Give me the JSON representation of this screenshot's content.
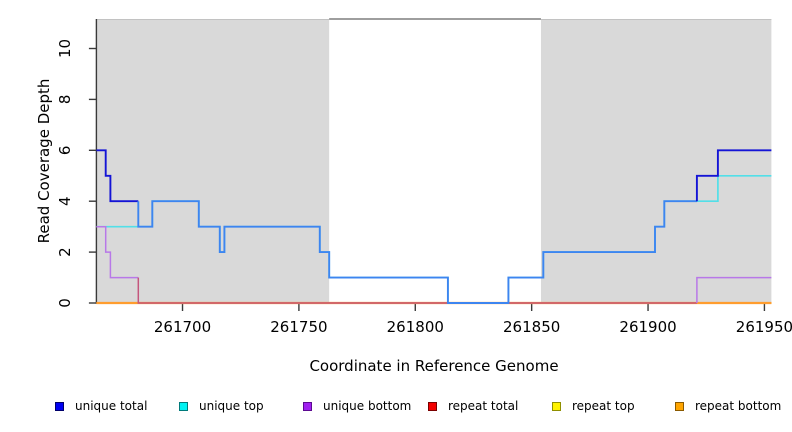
{
  "chart_data": {
    "type": "line",
    "subtype": "step-coverage",
    "title": "",
    "xlabel": "Coordinate in Reference Genome",
    "ylabel": "Read Coverage Depth",
    "xlim": [
      261663,
      261953
    ],
    "ylim": [
      0,
      11.15
    ],
    "x_ticks": [
      261700,
      261750,
      261800,
      261850,
      261900,
      261950
    ],
    "y_ticks": [
      0,
      2,
      4,
      6,
      8,
      10
    ],
    "grid": false,
    "legend_position": "bottom",
    "background_shading": {
      "comment_color": "#d9d9d9",
      "color": "#d9d9d9",
      "regions": [
        [
          261663,
          261763
        ],
        [
          261854,
          261953
        ]
      ]
    },
    "series": [
      {
        "name": "repeat total",
        "color": "#dd2b2b",
        "width": 1.4,
        "steps": [
          [
            261663,
            0
          ]
        ]
      },
      {
        "name": "repeat top",
        "color": "#f0e130",
        "width": 1.4,
        "steps": [
          [
            261663,
            0
          ]
        ]
      },
      {
        "name": "repeat bottom",
        "color": "#ff9d2e",
        "width": 2.2,
        "steps": [
          [
            261663,
            0
          ]
        ]
      },
      {
        "name": "unique top",
        "color": "#52dfe8",
        "width": 1.7,
        "steps": [
          [
            261663,
            3
          ],
          [
            261687,
            4
          ],
          [
            261707,
            3
          ],
          [
            261716,
            2
          ],
          [
            261718,
            3
          ],
          [
            261759,
            2
          ],
          [
            261763,
            1
          ],
          [
            261814,
            0
          ],
          [
            261840,
            1
          ],
          [
            261855,
            2
          ],
          [
            261903,
            3
          ],
          [
            261907,
            4
          ],
          [
            261930,
            5
          ]
        ]
      },
      {
        "name": "unique bottom",
        "color": "#b878e8",
        "zero_blend_color": "#c4567d",
        "width": 1.5,
        "steps": [
          [
            261663,
            3
          ],
          [
            261667,
            2
          ],
          [
            261669,
            1
          ],
          [
            261681,
            0
          ],
          [
            261921,
            1
          ]
        ]
      },
      {
        "name": "unique total",
        "color": "#1414d6",
        "overlap_color": "#3d85f0",
        "width": 1.9,
        "steps": [
          [
            261663,
            6
          ],
          [
            261667,
            5
          ],
          [
            261669,
            4
          ],
          [
            261681,
            3
          ],
          [
            261687,
            4
          ],
          [
            261707,
            3
          ],
          [
            261716,
            2
          ],
          [
            261718,
            3
          ],
          [
            261759,
            2
          ],
          [
            261763,
            1
          ],
          [
            261814,
            0
          ],
          [
            261840,
            1
          ],
          [
            261855,
            2
          ],
          [
            261903,
            3
          ],
          [
            261907,
            4
          ],
          [
            261921,
            5
          ],
          [
            261930,
            6
          ]
        ]
      }
    ],
    "legend": [
      {
        "label": "unique total",
        "fill": "#0000f2",
        "border": "#00006b"
      },
      {
        "label": "unique top",
        "fill": "#00f2f2",
        "border": "#007a7a"
      },
      {
        "label": "unique bottom",
        "fill": "#a020f0",
        "border": "#5c0a91"
      },
      {
        "label": "repeat total",
        "fill": "#f20000",
        "border": "#7a0000"
      },
      {
        "label": "repeat top",
        "fill": "#fff200",
        "border": "#8f8f00"
      },
      {
        "label": "repeat bottom",
        "fill": "#ffa500",
        "border": "#8a5a00"
      }
    ]
  }
}
